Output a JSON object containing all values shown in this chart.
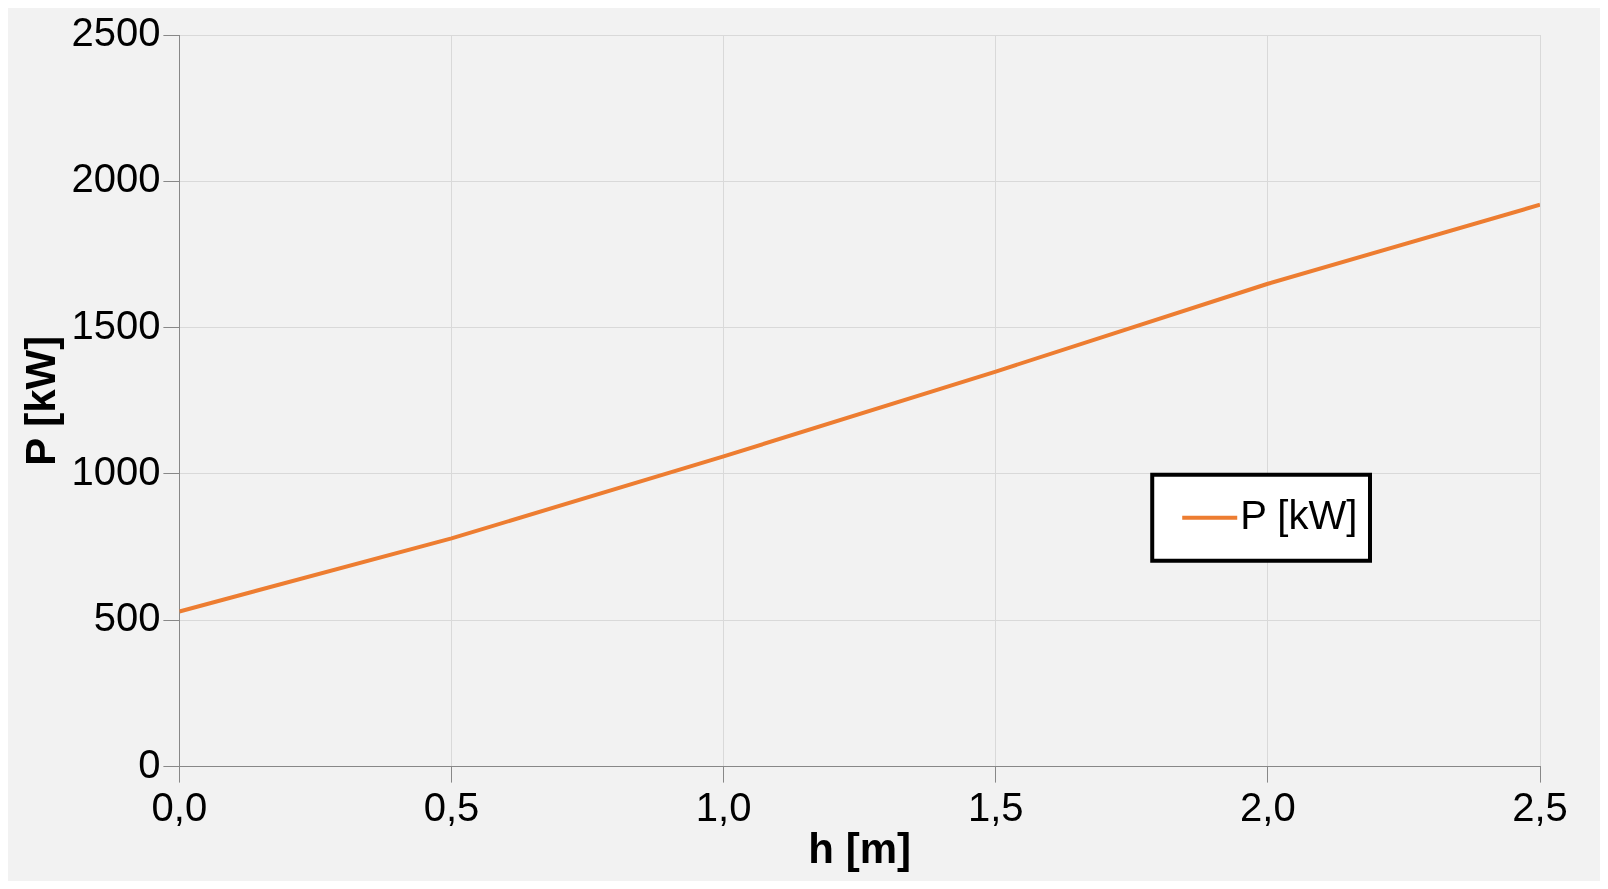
{
  "chart_data": {
    "type": "line",
    "xlabel": "h [m]",
    "ylabel": "P [kW]",
    "x": [
      0,
      0.5,
      1,
      1.5,
      2,
      2.5
    ],
    "series": [
      {
        "name": "P [kW]",
        "color": "#ed7d31",
        "values": [
          530,
          780,
          1060,
          1350,
          1650,
          1920
        ]
      }
    ],
    "xlim": [
      0,
      2.5
    ],
    "xticks": [
      {
        "value": 0,
        "label": "0,0"
      },
      {
        "value": 0.5,
        "label": "0,5"
      },
      {
        "value": 1,
        "label": "1,0"
      },
      {
        "value": 1.5,
        "label": "1,5"
      },
      {
        "value": 2,
        "label": "2,0"
      },
      {
        "value": 2.5,
        "label": "2,5"
      }
    ],
    "ylim": [
      0,
      2500
    ],
    "yticks": [
      0,
      500,
      1000,
      1500,
      2000,
      2500
    ],
    "grid": true,
    "legend": "right",
    "marker": "none",
    "line_style": "solid"
  }
}
